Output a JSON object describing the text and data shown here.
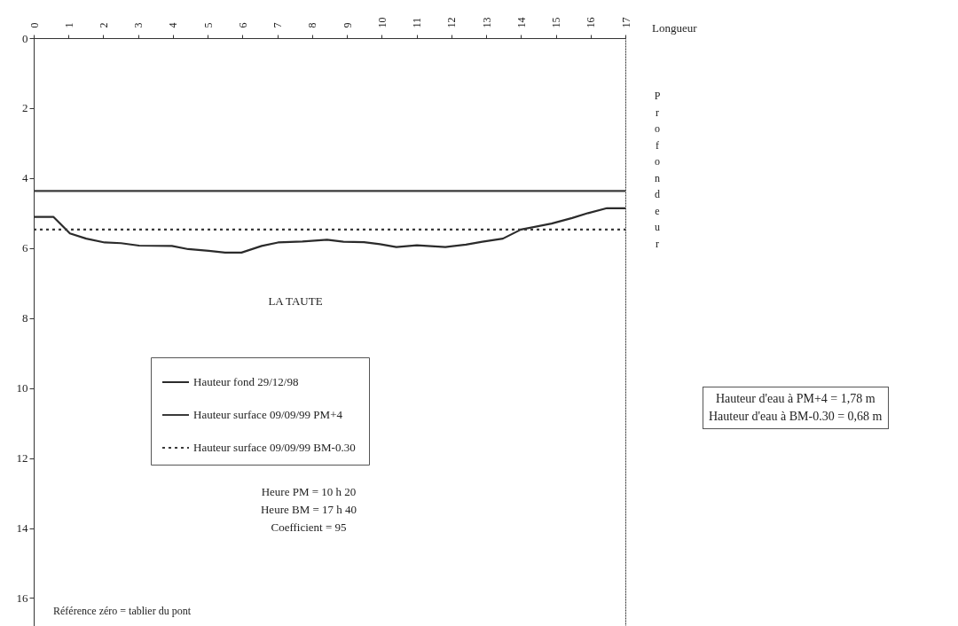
{
  "chart_data": {
    "type": "line",
    "xlabel": "Longueur",
    "ylabel": "Profondeur",
    "xlim": [
      0,
      17
    ],
    "xticks": [
      0,
      1,
      2,
      3,
      4,
      5,
      6,
      7,
      8,
      9,
      10,
      11,
      12,
      13,
      14,
      15,
      16,
      17
    ],
    "ylim": [
      16.8,
      0
    ],
    "yticks": [
      0,
      2,
      4,
      6,
      8,
      10,
      12,
      14,
      16
    ],
    "series": [
      {
        "name": "Hauteur fond 29/12/98",
        "color": "#2b2b2b",
        "line_style": "solid",
        "x": [
          0,
          0.57,
          1.04,
          1.51,
          2.04,
          2.51,
          3.03,
          3.97,
          4.44,
          5.03,
          5.5,
          5.97,
          6.55,
          7.02,
          7.72,
          8.43,
          8.9,
          9.49,
          9.95,
          10.42,
          11.01,
          11.83,
          12.42,
          12.89,
          13.48,
          14.0,
          14.88,
          15.47,
          15.93,
          16.47,
          17.0
        ],
        "values": [
          5.11,
          5.11,
          5.58,
          5.73,
          5.84,
          5.86,
          5.93,
          5.94,
          6.03,
          6.08,
          6.13,
          6.13,
          5.94,
          5.84,
          5.81,
          5.76,
          5.82,
          5.83,
          5.89,
          5.97,
          5.92,
          5.97,
          5.9,
          5.82,
          5.73,
          5.47,
          5.3,
          5.14,
          5.0,
          4.86,
          4.86
        ]
      },
      {
        "name": "Hauteur surface  09/09/99 PM+4",
        "color": "#3a3a3a",
        "line_style": "solid",
        "x": [
          0,
          17
        ],
        "values": [
          4.37,
          4.37
        ]
      },
      {
        "name": "Hauteur surface  09/09/99 BM-0.30",
        "color": "#3a3a3a",
        "line_style": "dotted",
        "x": [
          0,
          17
        ],
        "values": [
          5.47,
          5.47
        ]
      }
    ],
    "legend": "center",
    "annotations": [
      "LA TAUTE",
      "Heure PM = 10 h 20",
      "Heure BM = 17 h 40",
      "Coefficient = 95",
      "Référence zéro = tablier du pont",
      "Hauteur d'eau à PM+4 = 1,78 m",
      "Hauteur d'eau à BM-0.30 = 0,68 m"
    ]
  }
}
